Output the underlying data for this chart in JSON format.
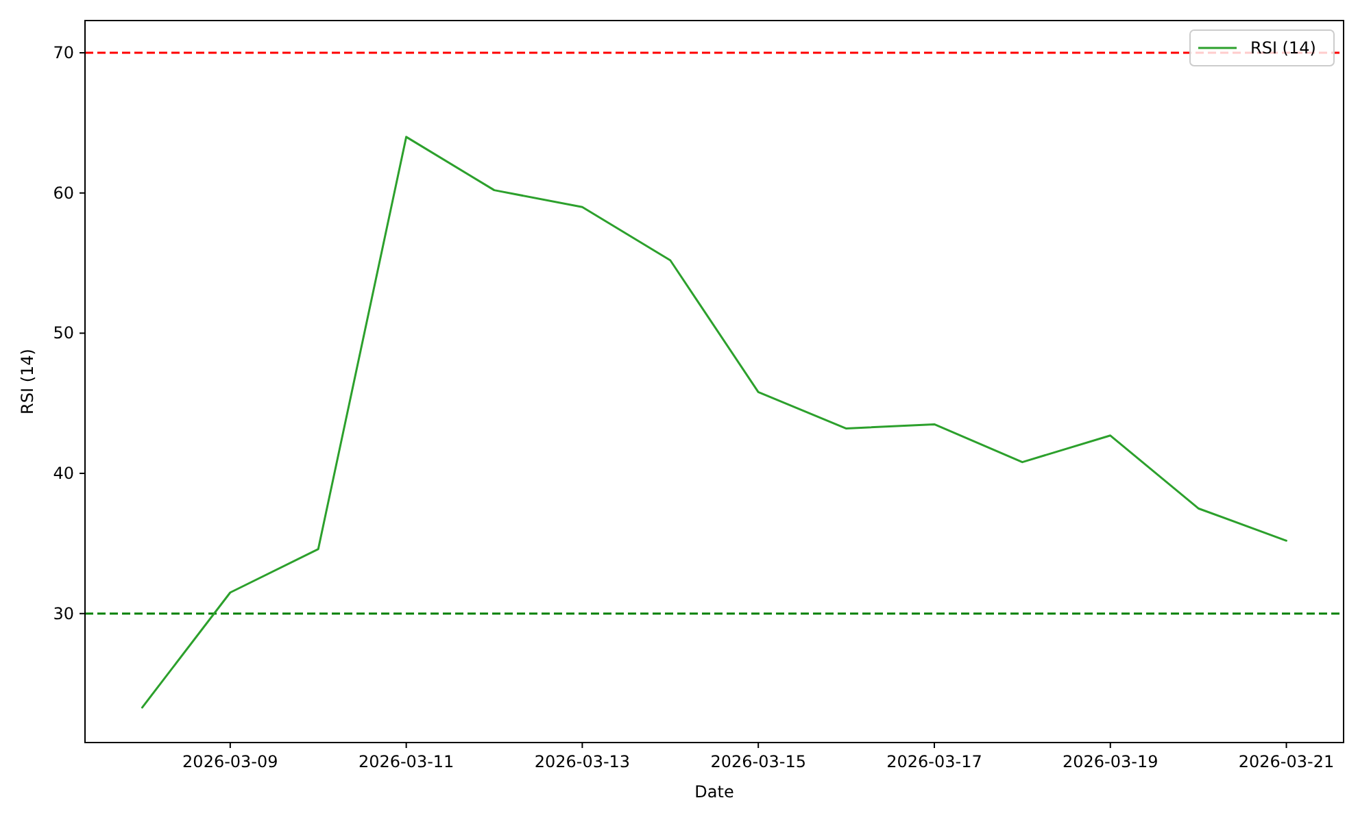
{
  "chart_data": {
    "type": "line",
    "xlabel": "Date",
    "ylabel": "RSI (14)",
    "x": [
      "2026-03-08",
      "2026-03-09",
      "2026-03-10",
      "2026-03-11",
      "2026-03-12",
      "2026-03-13",
      "2026-03-14",
      "2026-03-15",
      "2026-03-16",
      "2026-03-17",
      "2026-03-18",
      "2026-03-19",
      "2026-03-20",
      "2026-03-21"
    ],
    "series": [
      {
        "name": "RSI (14)",
        "color": "#2ca02c",
        "values": [
          23.3,
          31.5,
          34.6,
          64.0,
          60.2,
          59.0,
          55.2,
          45.8,
          43.2,
          43.5,
          40.8,
          42.7,
          37.5,
          35.2
        ]
      }
    ],
    "xlim": [
      "2026-03-07T08:24",
      "2026-03-21T15:36"
    ],
    "xticks": [
      "2026-03-09",
      "2026-03-11",
      "2026-03-13",
      "2026-03-15",
      "2026-03-17",
      "2026-03-19",
      "2026-03-21"
    ],
    "ylim": [
      20.8,
      72.3
    ],
    "yticks": [
      30,
      40,
      50,
      60,
      70
    ],
    "ref_lines": [
      {
        "axis": "y",
        "value": 70,
        "color": "#ff0000",
        "line_style": "dashed"
      },
      {
        "axis": "y",
        "value": 30,
        "color": "#008000",
        "line_style": "dashed"
      }
    ],
    "legend": "top right",
    "grid": false,
    "line_style": "solid",
    "marker": "none"
  }
}
